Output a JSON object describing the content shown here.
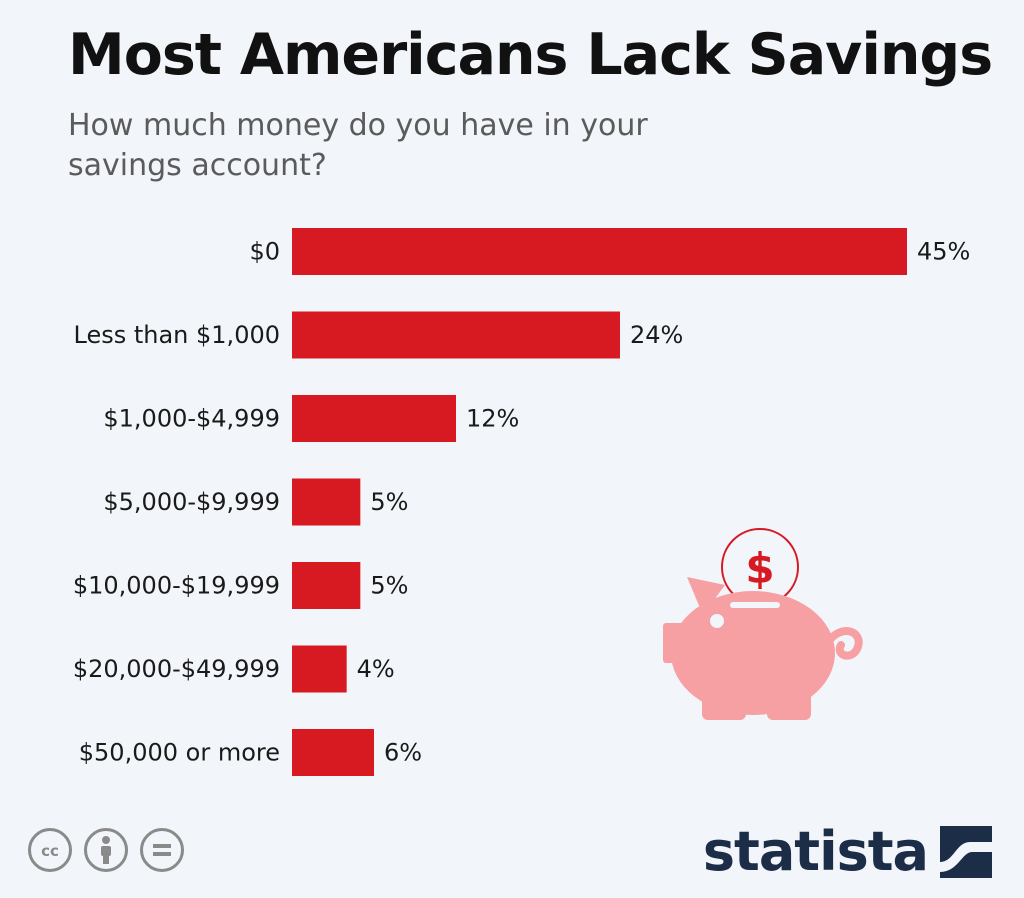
{
  "title": "Most Americans Lack Savings",
  "subtitle": "How much money do you have in your savings account?",
  "brand": "statista",
  "colors": {
    "bar": "#d71a21",
    "text": "#1a1a1a",
    "background": "#f2f5f9",
    "piggy": "#f6a0a3",
    "brand": "#1b2d47"
  },
  "icons": [
    "piggy-bank-icon",
    "dollar-coin-icon",
    "cc-icon",
    "attribution-icon",
    "no-derivatives-icon",
    "statista-logo-icon"
  ],
  "chart_data": {
    "type": "bar",
    "orientation": "horizontal",
    "title": "Most Americans Lack Savings",
    "subtitle": "How much money do you have in your savings account?",
    "categories": [
      "$0",
      "Less than $1,000",
      "$1,000-$4,999",
      "$5,000-$9,999",
      "$10,000-$19,999",
      "$20,000-$49,999",
      "$50,000 or more"
    ],
    "values": [
      45,
      24,
      12,
      5,
      5,
      4,
      6
    ],
    "value_labels": [
      "45%",
      "24%",
      "12%",
      "5%",
      "5%",
      "4%",
      "6%"
    ],
    "unit": "%",
    "xlim": [
      0,
      45
    ],
    "grid": false,
    "legend": "none"
  }
}
